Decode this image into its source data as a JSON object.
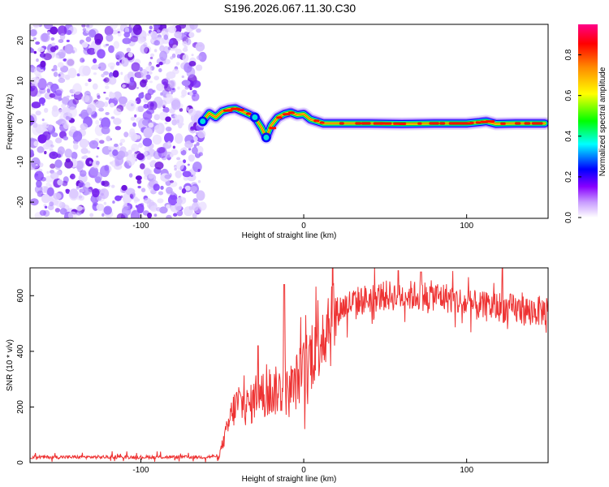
{
  "chart_data": [
    {
      "type": "heatmap",
      "title": "S196.2026.067.11.30.C30",
      "xlabel": "Height of straight line (km)",
      "ylabel": "Frequency (Hz)",
      "xlim": [
        -168,
        150
      ],
      "ylim": [
        -24,
        24
      ],
      "xticks": [
        "-100",
        "0",
        "100"
      ],
      "yticks": [
        "20",
        "10",
        "0",
        "-10",
        "-20"
      ],
      "noise_region_x": [
        -168,
        -62
      ],
      "track": {
        "x": [
          -62,
          -58,
          -54,
          -50,
          -46,
          -42,
          -38,
          -34,
          -30,
          -26,
          -23,
          -20,
          -16,
          -12,
          -8,
          -4,
          0,
          4,
          8,
          12,
          20,
          40,
          60,
          80,
          100,
          108,
          112,
          118,
          130,
          148
        ],
        "freq_hz": [
          0,
          2,
          1,
          2.5,
          3,
          3.2,
          2.5,
          1.8,
          1,
          -1.5,
          -4,
          -1,
          1,
          1.8,
          2.2,
          1.6,
          1.8,
          0.5,
          0,
          -0.5,
          -0.5,
          -0.5,
          -0.6,
          -0.5,
          -0.5,
          -0.2,
          0,
          -0.6,
          -0.5,
          -0.5
        ]
      },
      "colorbar": {
        "label": "Normalized spectral amplitude",
        "range": [
          0.0,
          0.95
        ],
        "ticks": [
          "0.0",
          "0.2",
          "0.4",
          "0.6",
          "0.8"
        ],
        "colors": [
          "#ffffff",
          "#8800ff",
          "#0000ff",
          "#00ffff",
          "#00ff00",
          "#ffff00",
          "#ff8800",
          "#ff0000",
          "#ff0088"
        ]
      }
    },
    {
      "type": "line",
      "title": "",
      "xlabel": "Height of straight line (km)",
      "ylabel": "SNR (10 * v/v)",
      "xlim": [
        -168,
        150
      ],
      "ylim": [
        0,
        700
      ],
      "xticks": [
        "-100",
        "0",
        "100"
      ],
      "yticks": [
        "0",
        "200",
        "400",
        "600"
      ],
      "series": [
        {
          "name": "SNR",
          "color": "#ee3333",
          "envelope_x": [
            -168,
            -60,
            -52,
            -48,
            -44,
            -40,
            -36,
            -32,
            -28,
            -24,
            -20,
            -16,
            -12,
            -8,
            -4,
            0,
            4,
            8,
            12,
            16,
            20,
            24,
            30,
            40,
            50,
            60,
            70,
            80,
            90,
            100,
            110,
            120,
            130,
            140,
            150
          ],
          "envelope_y": [
            20,
            20,
            25,
            100,
            180,
            220,
            200,
            210,
            260,
            230,
            250,
            260,
            260,
            240,
            300,
            330,
            380,
            450,
            480,
            520,
            540,
            560,
            575,
            590,
            600,
            600,
            600,
            600,
            590,
            570,
            560,
            560,
            550,
            545,
            545
          ],
          "spikes": [
            {
              "x": -12,
              "y": 640
            },
            {
              "x": -28,
              "y": 420
            },
            {
              "x": 58,
              "y": 690
            },
            {
              "x": 72,
              "y": 685
            },
            {
              "x": 122,
              "y": 700
            }
          ]
        }
      ]
    }
  ]
}
